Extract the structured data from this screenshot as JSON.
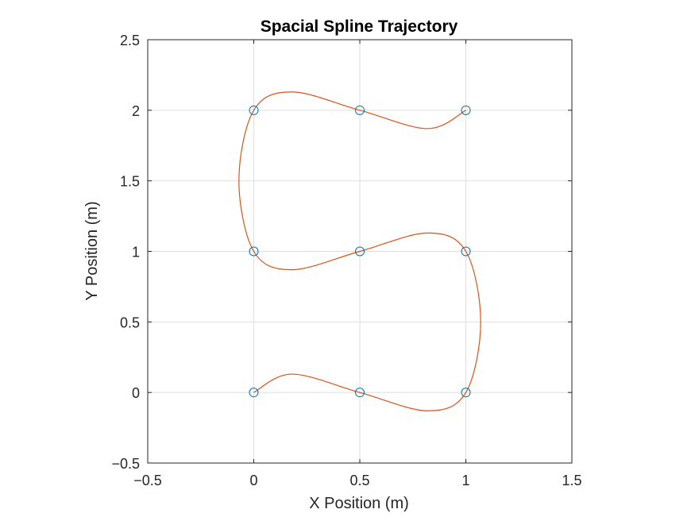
{
  "chart_data": {
    "type": "line",
    "title": "Spacial Spline Trajectory",
    "xlabel": "X Position (m)",
    "ylabel": "Y Position (m)",
    "xlim": [
      -0.5,
      1.5
    ],
    "ylim": [
      -0.5,
      2.5
    ],
    "xticks": [
      -0.5,
      0,
      0.5,
      1,
      1.5
    ],
    "yticks": [
      -0.5,
      0,
      0.5,
      1,
      1.5,
      2,
      2.5
    ],
    "xtick_labels": [
      "−0.5",
      "0",
      "0.5",
      "1",
      "1.5"
    ],
    "ytick_labels": [
      "−0.5",
      "0",
      "0.5",
      "1",
      "1.5",
      "2",
      "2.5"
    ],
    "grid": true,
    "series": [
      {
        "kind": "spline-line",
        "color": "#D95319",
        "x": [
          0.0,
          0.18,
          0.5,
          0.82,
          1.0,
          1.07,
          1.0,
          0.82,
          0.5,
          0.18,
          0.0,
          -0.07,
          0.0,
          0.18,
          0.5,
          0.82,
          1.0
        ],
        "y": [
          0.0,
          0.13,
          0.0,
          -0.13,
          0.0,
          0.5,
          1.0,
          1.13,
          1.0,
          0.87,
          1.0,
          1.5,
          2.0,
          2.13,
          2.0,
          1.87,
          2.0
        ]
      },
      {
        "kind": "markers",
        "marker": "circle",
        "color": "#0072BD",
        "x": [
          0,
          0.5,
          1,
          1,
          0.5,
          0,
          0,
          0.5,
          1
        ],
        "y": [
          0,
          0,
          0,
          1,
          1,
          1,
          2,
          2,
          2
        ]
      }
    ]
  }
}
